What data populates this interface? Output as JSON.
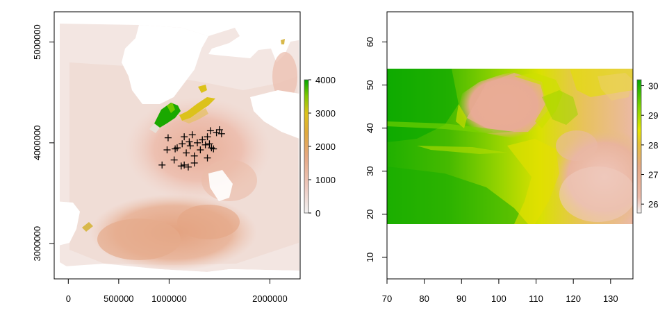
{
  "chart_data": [
    {
      "type": "heatmap",
      "title": "",
      "xlabel": "",
      "ylabel": "",
      "xlim": [
        -140000,
        2300000
      ],
      "ylim": [
        2650000,
        5300000
      ],
      "x_ticks": [
        0,
        500000,
        1000000,
        2000000
      ],
      "x_tick_labels": [
        "0",
        "500000",
        "1000000",
        "2000000"
      ],
      "y_ticks": [
        3000000,
        4000000,
        5000000
      ],
      "y_tick_labels": [
        "3000000",
        "4000000",
        "5000000"
      ],
      "grid": false,
      "legend": {
        "placement": "right",
        "min": 0,
        "max": 4000,
        "ticks": [
          0,
          1000,
          2000,
          3000,
          4000
        ],
        "tick_labels": [
          "0",
          "1000",
          "2000",
          "3000",
          "4000"
        ],
        "colors": [
          "#f2f2f2",
          "#eec9bf",
          "#e6a884",
          "#e0a93c",
          "#dcc21a",
          "#7ec800",
          "#00a600"
        ]
      },
      "points": [
        [
          990000,
          4050000
        ],
        [
          1150000,
          4060000
        ],
        [
          1230000,
          4080000
        ],
        [
          1380000,
          4060000
        ],
        [
          1410000,
          4120000
        ],
        [
          1470000,
          4100000
        ],
        [
          1500000,
          4130000
        ],
        [
          1520000,
          4090000
        ],
        [
          1080000,
          3950000
        ],
        [
          1130000,
          3990000
        ],
        [
          1200000,
          4010000
        ],
        [
          1280000,
          4000000
        ],
        [
          1360000,
          3980000
        ],
        [
          1420000,
          3950000
        ],
        [
          1440000,
          3940000
        ],
        [
          980000,
          3930000
        ],
        [
          1060000,
          3940000
        ],
        [
          1170000,
          3900000
        ],
        [
          1250000,
          3870000
        ],
        [
          1310000,
          3930000
        ],
        [
          1400000,
          3990000
        ],
        [
          1050000,
          3830000
        ],
        [
          1150000,
          3780000
        ],
        [
          1190000,
          3760000
        ],
        [
          1250000,
          3800000
        ],
        [
          1380000,
          3850000
        ],
        [
          930000,
          3780000
        ],
        [
          1120000,
          3770000
        ],
        [
          1210000,
          3970000
        ],
        [
          1330000,
          4030000
        ]
      ]
    },
    {
      "type": "heatmap",
      "title": "",
      "xlabel": "",
      "ylabel": "",
      "xlim": [
        70,
        136
      ],
      "ylim": [
        5,
        67
      ],
      "data_extent": {
        "x": [
          70,
          136
        ],
        "y": [
          18,
          52.5
        ]
      },
      "x_ticks": [
        70,
        80,
        90,
        100,
        110,
        120,
        130
      ],
      "x_tick_labels": [
        "70",
        "80",
        "90",
        "100",
        "110",
        "120",
        "130"
      ],
      "y_ticks": [
        10,
        20,
        30,
        40,
        50,
        60
      ],
      "y_tick_labels": [
        "10",
        "20",
        "30",
        "40",
        "50",
        "60"
      ],
      "grid": false,
      "legend": {
        "placement": "right",
        "min": 25.7,
        "max": 30.2,
        "ticks": [
          26,
          27,
          28,
          29,
          30
        ],
        "tick_labels": [
          "26",
          "27",
          "28",
          "29",
          "30"
        ],
        "colors": [
          "#f2f2f2",
          "#ecb9a8",
          "#e6a884",
          "#e5c135",
          "#e6e600",
          "#7ed400",
          "#00a600"
        ]
      }
    }
  ]
}
